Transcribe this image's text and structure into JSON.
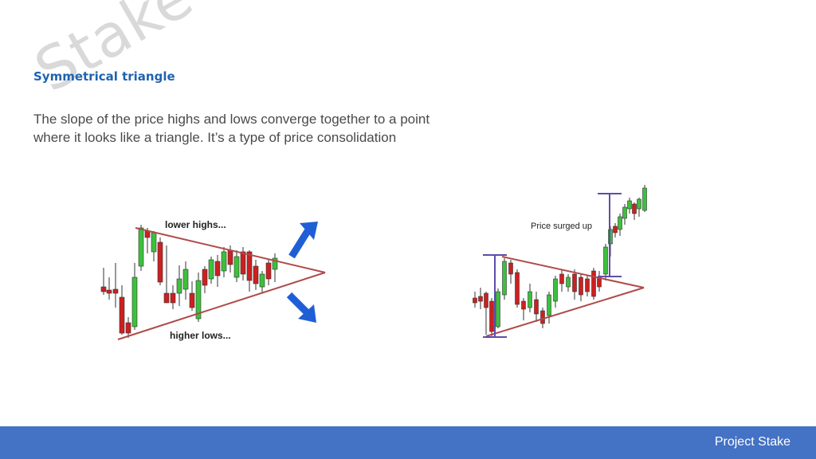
{
  "slide": {
    "watermark": "Stake",
    "title": "Symmetrical triangle",
    "description": "The slope of the price highs and lows converge together to a point where it looks like a triangle. It’s a type of price consolidation"
  },
  "left_figure": {
    "label_top": "lower highs...",
    "label_bottom": "higher lows...",
    "arrow_color": "#1f5fd6"
  },
  "right_figure": {
    "annotation": "Price surged up",
    "marker_color": "#5b4fa8"
  },
  "colors": {
    "bull": "#3cc13c",
    "bear": "#cc2020",
    "trendline": "#b04a4a",
    "footer": "#4472c4"
  },
  "footer": {
    "brand": "Project Stake"
  }
}
